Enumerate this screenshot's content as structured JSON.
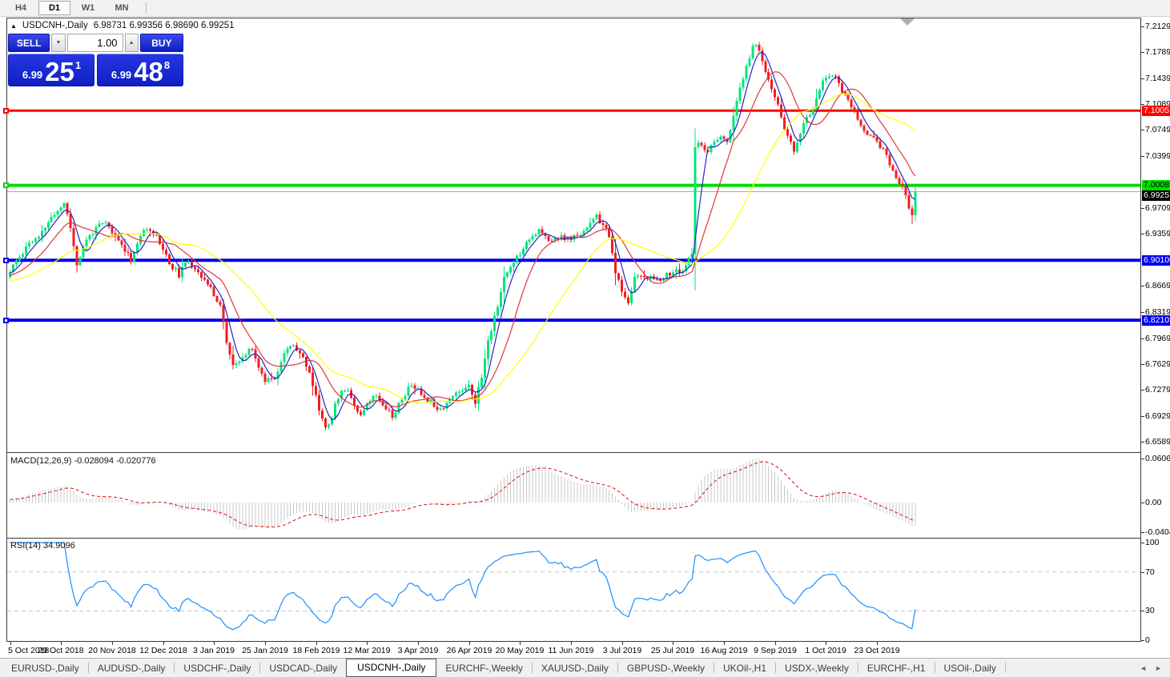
{
  "toolbar": {
    "timeframes": [
      "H4",
      "D1",
      "W1",
      "MN"
    ],
    "active_timeframe": "D1"
  },
  "chart_header": {
    "marker_icon": "▲",
    "symbol_label": "USDCNH-,Daily",
    "ohlc": "6.98731 6.99356 6.98690 6.99251"
  },
  "trade_panel": {
    "sell_label": "SELL",
    "buy_label": "BUY",
    "volume": "1.00",
    "spin_down_icon": "▼",
    "spin_up_icon": "▲",
    "sell_price_small": "6.99",
    "sell_price_big": "25",
    "sell_price_sup": "1",
    "buy_price_small": "6.99",
    "buy_price_big": "48",
    "buy_price_sup": "8"
  },
  "chart_data": {
    "type": "candlestick",
    "symbol": "USDCNH-",
    "timeframe": "Daily",
    "bars": 285,
    "candle_colors": {
      "up": "#00e57b",
      "down": "#f21d1d"
    },
    "close_path": [
      [
        0,
        6.885
      ],
      [
        2,
        6.9
      ],
      [
        4,
        6.912
      ],
      [
        6,
        6.925
      ],
      [
        9,
        6.93
      ],
      [
        12,
        6.952
      ],
      [
        14,
        6.962
      ],
      [
        16,
        6.972
      ],
      [
        17,
        6.978
      ],
      [
        19,
        6.945
      ],
      [
        21,
        6.896
      ],
      [
        24,
        6.928
      ],
      [
        27,
        6.944
      ],
      [
        30,
        6.95
      ],
      [
        33,
        6.932
      ],
      [
        36,
        6.916
      ],
      [
        38,
        6.902
      ],
      [
        41,
        6.934
      ],
      [
        44,
        6.944
      ],
      [
        47,
        6.926
      ],
      [
        50,
        6.897
      ],
      [
        53,
        6.882
      ],
      [
        56,
        6.9
      ],
      [
        59,
        6.887
      ],
      [
        62,
        6.868
      ],
      [
        64,
        6.856
      ],
      [
        66,
        6.842
      ],
      [
        68,
        6.792
      ],
      [
        70,
        6.758
      ],
      [
        73,
        6.77
      ],
      [
        76,
        6.786
      ],
      [
        78,
        6.757
      ],
      [
        80,
        6.742
      ],
      [
        83,
        6.746
      ],
      [
        86,
        6.776
      ],
      [
        89,
        6.79
      ],
      [
        92,
        6.772
      ],
      [
        95,
        6.736
      ],
      [
        97,
        6.702
      ],
      [
        99,
        6.679
      ],
      [
        101,
        6.692
      ],
      [
        103,
        6.72
      ],
      [
        106,
        6.731
      ],
      [
        108,
        6.707
      ],
      [
        110,
        6.696
      ],
      [
        112,
        6.712
      ],
      [
        115,
        6.721
      ],
      [
        118,
        6.706
      ],
      [
        120,
        6.693
      ],
      [
        123,
        6.716
      ],
      [
        126,
        6.736
      ],
      [
        129,
        6.722
      ],
      [
        132,
        6.713
      ],
      [
        135,
        6.702
      ],
      [
        138,
        6.716
      ],
      [
        141,
        6.726
      ],
      [
        144,
        6.736
      ],
      [
        146,
        6.712
      ],
      [
        148,
        6.746
      ],
      [
        150,
        6.792
      ],
      [
        152,
        6.826
      ],
      [
        155,
        6.876
      ],
      [
        158,
        6.9
      ],
      [
        160,
        6.912
      ],
      [
        163,
        6.932
      ],
      [
        166,
        6.94
      ],
      [
        169,
        6.926
      ],
      [
        172,
        6.932
      ],
      [
        175,
        6.928
      ],
      [
        178,
        6.933
      ],
      [
        181,
        6.946
      ],
      [
        184,
        6.958
      ],
      [
        186,
        6.948
      ],
      [
        188,
        6.932
      ],
      [
        190,
        6.886
      ],
      [
        192,
        6.856
      ],
      [
        194,
        6.846
      ],
      [
        196,
        6.878
      ],
      [
        199,
        6.881
      ],
      [
        202,
        6.874
      ],
      [
        205,
        6.879
      ],
      [
        208,
        6.885
      ],
      [
        211,
        6.886
      ],
      [
        213,
        6.902
      ],
      [
        214,
        6.908
      ],
      [
        215,
        7.05
      ],
      [
        217,
        7.058
      ],
      [
        219,
        7.042
      ],
      [
        221,
        7.06
      ],
      [
        223,
        7.062
      ],
      [
        225,
        7.06
      ],
      [
        227,
        7.094
      ],
      [
        229,
        7.128
      ],
      [
        231,
        7.158
      ],
      [
        233,
        7.184
      ],
      [
        234,
        7.191
      ],
      [
        236,
        7.166
      ],
      [
        238,
        7.142
      ],
      [
        240,
        7.12
      ],
      [
        242,
        7.092
      ],
      [
        244,
        7.066
      ],
      [
        246,
        7.046
      ],
      [
        248,
        7.07
      ],
      [
        250,
        7.09
      ],
      [
        252,
        7.106
      ],
      [
        254,
        7.13
      ],
      [
        256,
        7.146
      ],
      [
        258,
        7.151
      ],
      [
        260,
        7.136
      ],
      [
        262,
        7.12
      ],
      [
        264,
        7.106
      ],
      [
        266,
        7.086
      ],
      [
        268,
        7.076
      ],
      [
        270,
        7.068
      ],
      [
        272,
        7.06
      ],
      [
        274,
        7.046
      ],
      [
        276,
        7.03
      ],
      [
        278,
        7.012
      ],
      [
        280,
        6.996
      ],
      [
        281,
        6.986
      ],
      [
        283,
        6.958
      ],
      [
        284,
        6.99251
      ]
    ],
    "moving_averages": [
      {
        "period": 5,
        "color": "#2424c8"
      },
      {
        "period": 13,
        "color": "#e03636"
      },
      {
        "period": 34,
        "color": "#ffff00"
      }
    ],
    "horizontal_lines": [
      {
        "price": 7.10051,
        "label": "7.10051",
        "color": "#ff0000",
        "thickness": 3,
        "label_fg": "#ffffff"
      },
      {
        "price": 7.00089,
        "label": "7.00089",
        "color": "#00dd00",
        "thickness": 4,
        "label_fg": "#000000"
      },
      {
        "price": 6.901,
        "label": "6.90100",
        "color": "#0000ee",
        "thickness": 4,
        "label_fg": "#ffffff"
      },
      {
        "price": 6.82103,
        "label": "6.82103",
        "color": "#0000ee",
        "thickness": 4,
        "label_fg": "#ffffff"
      }
    ],
    "current_price": {
      "value": 6.99251,
      "label": "6.99251",
      "line_color": "#aaaaaa",
      "label_bg": "#000000",
      "label_fg": "#ffffff"
    },
    "y_axis_ticks": [
      "7.21290",
      "7.17890",
      "7.14390",
      "7.10890",
      "7.07490",
      "7.03990",
      "6.97090",
      "6.93590",
      "6.86690",
      "6.83190",
      "6.79690",
      "6.76290",
      "6.72790",
      "6.69290",
      "6.65890"
    ],
    "x_tick_every": 16,
    "x_tick_labels": [
      "5 Oct 2018",
      "29 Oct 2018",
      "20 Nov 2018",
      "12 Dec 2018",
      "3 Jan 2019",
      "25 Jan 2019",
      "18 Feb 2019",
      "12 Mar 2019",
      "3 Apr 2019",
      "26 Apr 2019",
      "20 May 2019",
      "11 Jun 2019",
      "3 Jul 2019",
      "25 Jul 2019",
      "16 Aug 2019",
      "9 Sep 2019",
      "1 Oct 2019",
      "23 Oct 2019"
    ],
    "macd": {
      "title": "MACD(12,26,9)",
      "values_text": "-0.028094 -0.020776",
      "fast": 12,
      "slow": 26,
      "signal_period": 9,
      "y_ticks": [
        "0.060687",
        "0.00",
        "-0.04043"
      ],
      "histogram_color": "#c8c8c8",
      "signal_color": "#e02020"
    },
    "rsi": {
      "title": "RSI(14)",
      "value_text": "34.9096",
      "period": 14,
      "y_ticks": [
        "100",
        "70",
        "30",
        "0"
      ],
      "levels": [
        70,
        30
      ],
      "line_color": "#1e90ff",
      "level_color": "#c4c4c4"
    }
  },
  "tabs": {
    "items": [
      "EURUSD-,Daily",
      "AUDUSD-,Daily",
      "USDCHF-,Daily",
      "USDCAD-,Daily",
      "USDCNH-,Daily",
      "EURCHF-,Weekly",
      "XAUUSD-,Daily",
      "GBPUSD-,Weekly",
      "UKOil-,H1",
      "USDX-,Weekly",
      "EURCHF-,H1",
      "USOil-,Daily"
    ],
    "active": "USDCNH-,Daily",
    "scroll_left_icon": "◄",
    "scroll_right_icon": "►"
  }
}
